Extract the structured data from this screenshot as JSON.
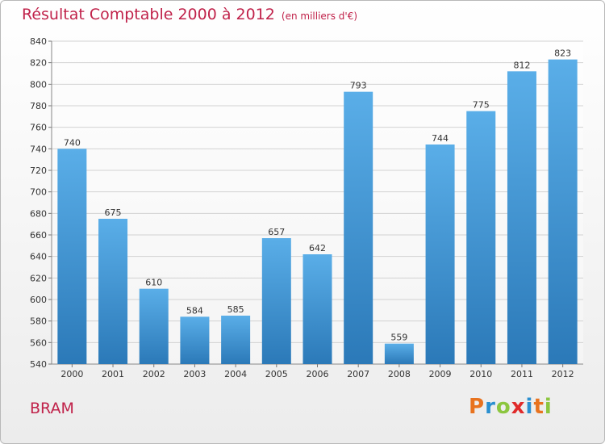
{
  "title": "Résultat Comptable 2000 à 2012",
  "subtitle": "(en milliers d'€)",
  "place": "BRAM",
  "brand": {
    "text": "Proxiti",
    "letter_colors": [
      "#e8731f",
      "#2a8fd0",
      "#8cc63f",
      "#e02b2b",
      "#2a8fd0",
      "#e8731f",
      "#8cc63f"
    ]
  },
  "colors": {
    "accent": "#c0224a",
    "bar_top": "#5aaee8",
    "bar_bottom": "#2b79b8"
  },
  "chart_data": {
    "type": "bar",
    "categories": [
      "2000",
      "2001",
      "2002",
      "2003",
      "2004",
      "2005",
      "2006",
      "2007",
      "2008",
      "2009",
      "2010",
      "2011",
      "2012"
    ],
    "values": [
      740,
      675,
      610,
      584,
      585,
      657,
      642,
      793,
      559,
      744,
      775,
      812,
      823
    ],
    "ylim": [
      540,
      840
    ],
    "yticks": [
      540,
      560,
      580,
      600,
      620,
      640,
      660,
      680,
      700,
      720,
      740,
      760,
      780,
      800,
      820,
      840
    ],
    "grid": true,
    "data_labels": true
  }
}
